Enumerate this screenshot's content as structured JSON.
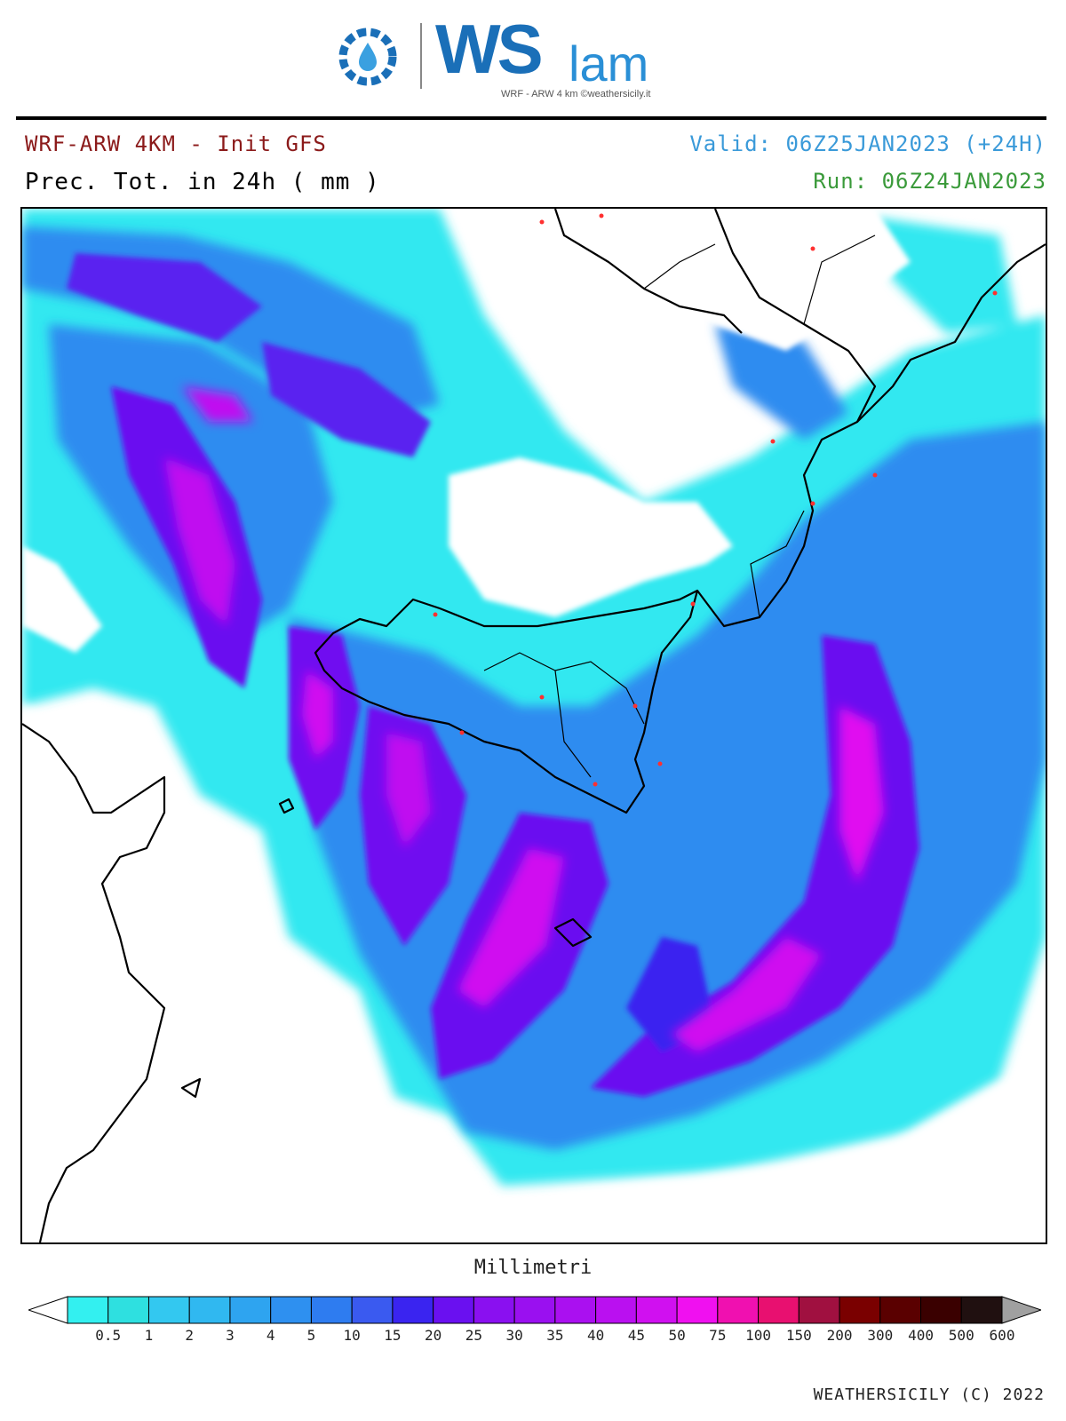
{
  "logo": {
    "brand": "WS",
    "brand_suffix": "lam",
    "subtitle": "WRF - ARW 4 km ©weathersicily.it"
  },
  "header": {
    "model": "WRF-ARW 4KM - Init GFS",
    "field": "Prec. Tot. in 24h ( mm )",
    "valid": "Valid: 06Z25JAN2023 (+24H)",
    "run": "Run: 06Z24JAN2023"
  },
  "legend": {
    "title": "Millimetri",
    "ticks": [
      "0.5",
      "1",
      "2",
      "3",
      "4",
      "5",
      "10",
      "15",
      "20",
      "25",
      "30",
      "35",
      "40",
      "45",
      "50",
      "75",
      "100",
      "150",
      "200",
      "300",
      "400",
      "500",
      "600"
    ],
    "colors": [
      "#33f0f0",
      "#2ee0e0",
      "#33c8f0",
      "#30b8f0",
      "#2ea4f0",
      "#2e90f0",
      "#2e7cf0",
      "#3a5af0",
      "#3a24f0",
      "#6a10f0",
      "#8a10f0",
      "#9a10f0",
      "#aa10f0",
      "#ba10f0",
      "#d010f0",
      "#f010f0",
      "#f010b0",
      "#e81070",
      "#a01040",
      "#7a0000",
      "#5a0000",
      "#3a0000",
      "#201010"
    ],
    "under_color": "#ffffff",
    "over_color": "#a0a0a0"
  },
  "footer": {
    "copyright": "WEATHERSICILY (C) 2022"
  }
}
